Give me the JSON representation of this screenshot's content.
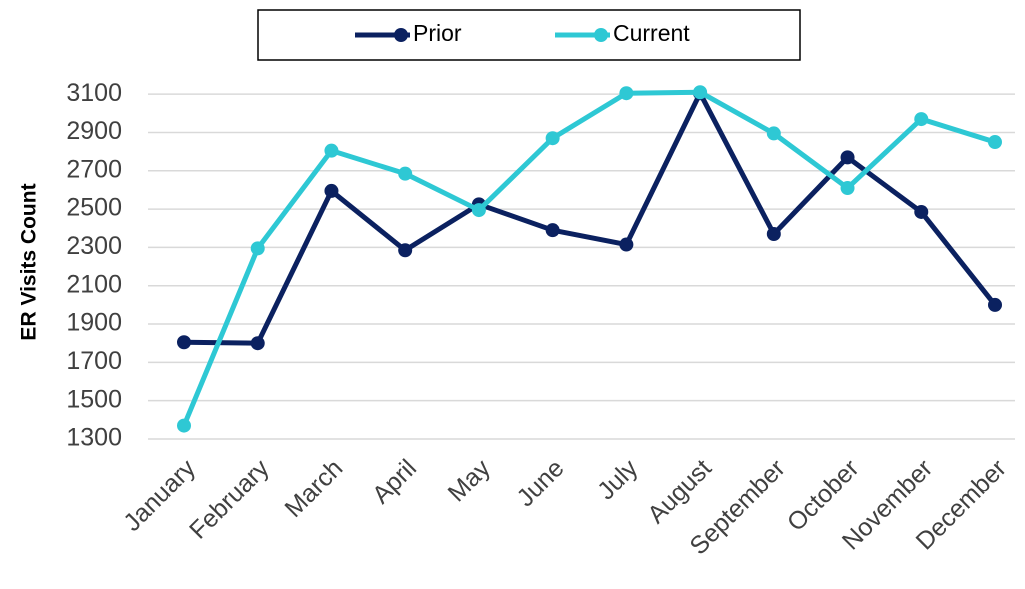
{
  "chart_data": {
    "type": "line",
    "y_label": "ER Visits Count",
    "categories": [
      "January",
      "February",
      "March",
      "April",
      "May",
      "June",
      "July",
      "August",
      "September",
      "October",
      "November",
      "December"
    ],
    "series": [
      {
        "name": "Prior",
        "color": "#0b2160",
        "values": [
          1805,
          1800,
          2595,
          2285,
          2525,
          2390,
          2315,
          3105,
          2370,
          2770,
          2485,
          2000
        ]
      },
      {
        "name": "Current",
        "color": "#2ec8d4",
        "values": [
          1370,
          2295,
          2805,
          2685,
          2495,
          2870,
          3105,
          3110,
          2895,
          2610,
          2970,
          2850
        ]
      }
    ],
    "ylim": [
      1300,
      3200
    ],
    "yticks": [
      1300,
      1500,
      1700,
      1900,
      2100,
      2300,
      2500,
      2700,
      2900,
      3100
    ],
    "grid": true,
    "legend": "top"
  }
}
